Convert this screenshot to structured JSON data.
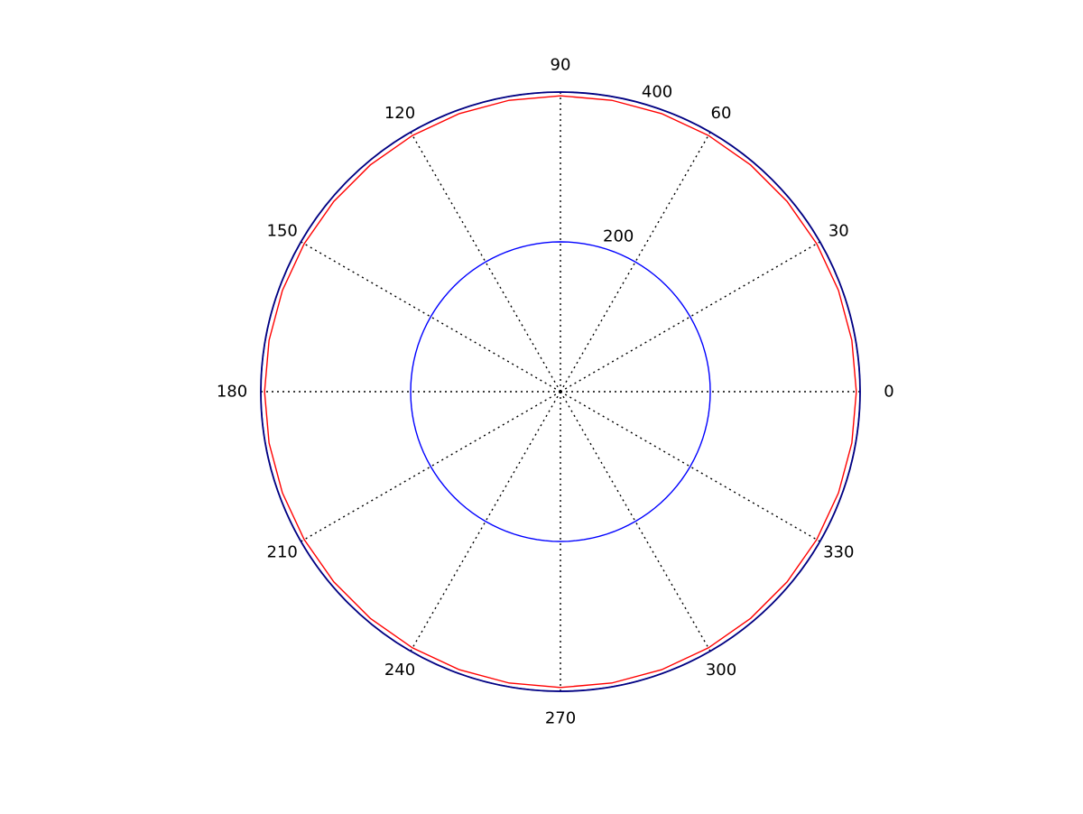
{
  "chart_data": {
    "type": "line",
    "projection": "polar",
    "angle_unit": "degrees",
    "angular_ticks": [
      "0",
      "30",
      "60",
      "90",
      "120",
      "150",
      "180",
      "210",
      "240",
      "270",
      "300",
      "330"
    ],
    "radial_ticks": [
      {
        "value": 200,
        "label": "200"
      },
      {
        "value": 400,
        "label": "400"
      }
    ],
    "rlim": [
      0,
      400
    ],
    "grid": true,
    "legend": "none",
    "outer_ring_color": "#000080",
    "series": [
      {
        "color": "#0000ff",
        "shape": "circle",
        "r": 200,
        "theta_step_deg": 3
      },
      {
        "color": "#ff0000",
        "shape": "circle",
        "r": 395,
        "theta_step_deg": 10
      },
      {
        "color": "#0000ff",
        "shape": "circle",
        "r": 400,
        "theta_step_deg": 3
      }
    ]
  }
}
